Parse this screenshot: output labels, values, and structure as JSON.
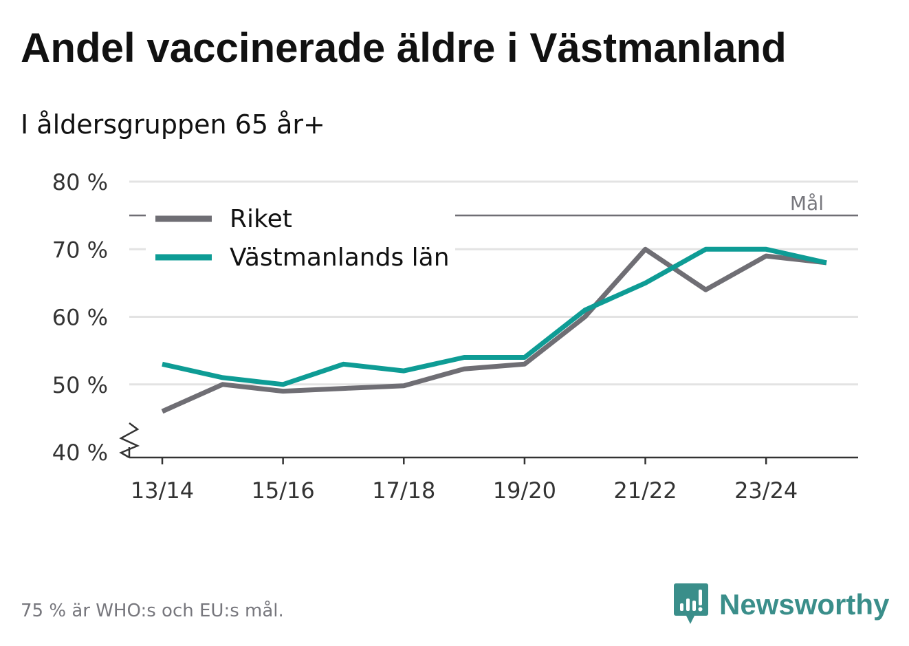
{
  "header": {
    "title": "Andel vaccinerade äldre i Västmanland",
    "subtitle": "I åldersgruppen 65 år+"
  },
  "footer": {
    "note": "75 % är WHO:s och EU:s mål.",
    "brand": "Newsworthy",
    "brand_icon": "newsworthy-logo-icon"
  },
  "colors": {
    "riket": "#6f6e74",
    "lan": "#0e9c95",
    "grid": "#e3e3e3",
    "target": "#6f6e74",
    "axis": "#333333",
    "brand": "#3a8e8a"
  },
  "chart_data": {
    "type": "line",
    "title": "Andel vaccinerade äldre i Västmanland",
    "subtitle": "I åldersgruppen 65 år+",
    "xlabel": "",
    "ylabel": "",
    "categories": [
      "13/14",
      "14/15",
      "15/16",
      "16/17",
      "17/18",
      "18/19",
      "19/20",
      "20/21",
      "21/22",
      "22/23",
      "23/24",
      "24/25"
    ],
    "x_tick_labels": [
      "13/14",
      "",
      "15/16",
      "",
      "17/18",
      "",
      "19/20",
      "",
      "21/22",
      "",
      "23/24",
      ""
    ],
    "y_ticks": [
      40,
      50,
      60,
      70,
      80
    ],
    "y_tick_labels": [
      "40 %",
      "50 %",
      "60 %",
      "70 %",
      "80 %"
    ],
    "ylim": [
      40,
      80
    ],
    "axis_break": true,
    "grid": true,
    "legend_position": "top-left",
    "series": [
      {
        "name": "Riket",
        "values": [
          46,
          50,
          49,
          49.4,
          49.8,
          52.3,
          53,
          60,
          70,
          64,
          69,
          68
        ]
      },
      {
        "name": "Västmanlands län",
        "values": [
          53,
          51,
          50,
          53,
          52,
          54,
          54,
          61,
          65,
          70,
          70,
          68
        ]
      }
    ],
    "target": {
      "value": 75,
      "label": "Mål"
    }
  }
}
